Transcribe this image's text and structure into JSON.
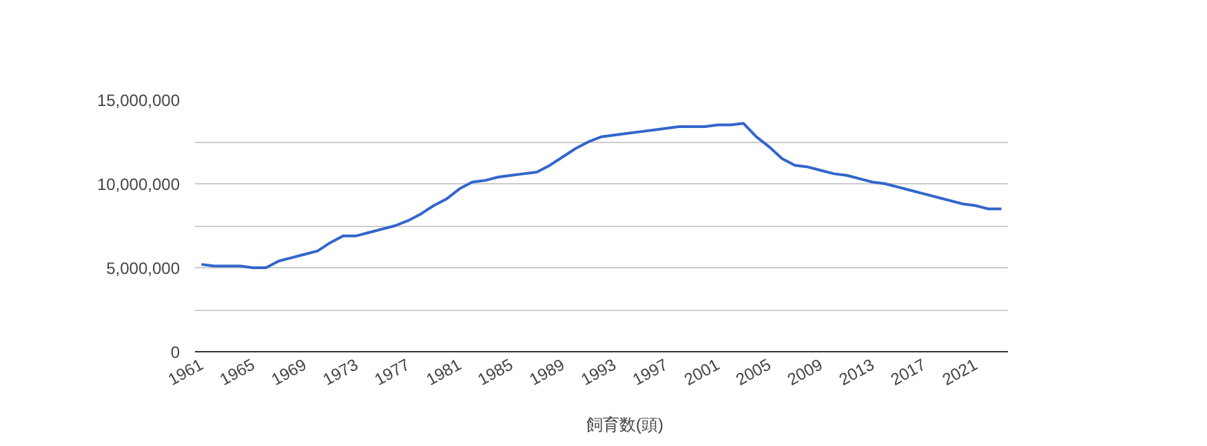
{
  "chart_data": {
    "type": "line",
    "x": [
      1961,
      1962,
      1963,
      1964,
      1965,
      1966,
      1967,
      1968,
      1969,
      1970,
      1971,
      1972,
      1973,
      1974,
      1975,
      1976,
      1977,
      1978,
      1979,
      1980,
      1981,
      1982,
      1983,
      1984,
      1985,
      1986,
      1987,
      1988,
      1989,
      1990,
      1991,
      1992,
      1993,
      1994,
      1995,
      1996,
      1997,
      1998,
      1999,
      2000,
      2001,
      2002,
      2003,
      2004,
      2005,
      2006,
      2007,
      2008,
      2009,
      2010,
      2011,
      2012,
      2013,
      2014,
      2015,
      2016,
      2017,
      2018,
      2019,
      2020,
      2021,
      2022,
      2023
    ],
    "series": [
      {
        "name": "飼育数(頭)",
        "color": "#3366cc",
        "values": [
          5200000,
          5100000,
          5100000,
          5100000,
          5000000,
          5000000,
          5400000,
          5600000,
          5800000,
          6000000,
          6500000,
          6900000,
          6900000,
          7100000,
          7300000,
          7500000,
          7800000,
          8200000,
          8700000,
          9100000,
          9700000,
          10100000,
          10200000,
          10400000,
          10500000,
          10600000,
          10700000,
          11100000,
          11600000,
          12100000,
          12500000,
          12800000,
          12900000,
          13000000,
          13100000,
          13200000,
          13300000,
          13400000,
          13400000,
          13400000,
          13500000,
          13500000,
          13600000,
          12800000,
          12200000,
          11500000,
          11100000,
          11000000,
          10800000,
          10600000,
          10500000,
          10300000,
          10100000,
          10000000,
          9800000,
          9600000,
          9400000,
          9200000,
          9000000,
          8800000,
          8700000,
          8500000,
          8500000
        ]
      }
    ],
    "xlim": [
      1960.5,
      2023.5
    ],
    "xticks": [
      1961,
      1965,
      1969,
      1973,
      1977,
      1981,
      1985,
      1989,
      1993,
      1997,
      2001,
      2005,
      2009,
      2013,
      2017,
      2021
    ],
    "ylim": [
      0,
      15000000
    ],
    "yticks": [
      0,
      {
        "value": 2500000,
        "label": null
      },
      {
        "value": 5000000,
        "label": "5,000,000"
      },
      {
        "value": 7500000,
        "label": null
      },
      {
        "value": 10000000,
        "label": "10,000,000"
      },
      {
        "value": 12500000,
        "label": null
      },
      {
        "value": 15000000,
        "label": "15,000,000"
      }
    ],
    "grid": "y",
    "legend": "bottom",
    "marker": "none",
    "line_style": "solid"
  }
}
